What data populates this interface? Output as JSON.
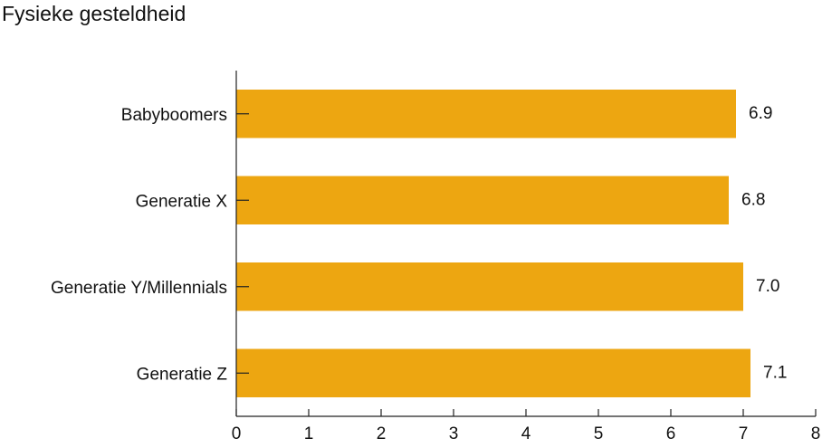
{
  "chart_data": {
    "type": "hbar",
    "title": "Fysieke gesteldheid",
    "categories": [
      "Babyboomers",
      "Generatie X",
      "Generatie Y/Millennials",
      "Generatie Z"
    ],
    "values": [
      6.9,
      6.8,
      7,
      7.1
    ],
    "value_labels": [
      "6.9",
      "6.8",
      "7.0",
      "7.1"
    ],
    "color": "#eda611",
    "xlim": [
      0,
      8
    ],
    "xticks": [
      0,
      1,
      2,
      3,
      4,
      5,
      6,
      7,
      8
    ],
    "grid": false
  }
}
